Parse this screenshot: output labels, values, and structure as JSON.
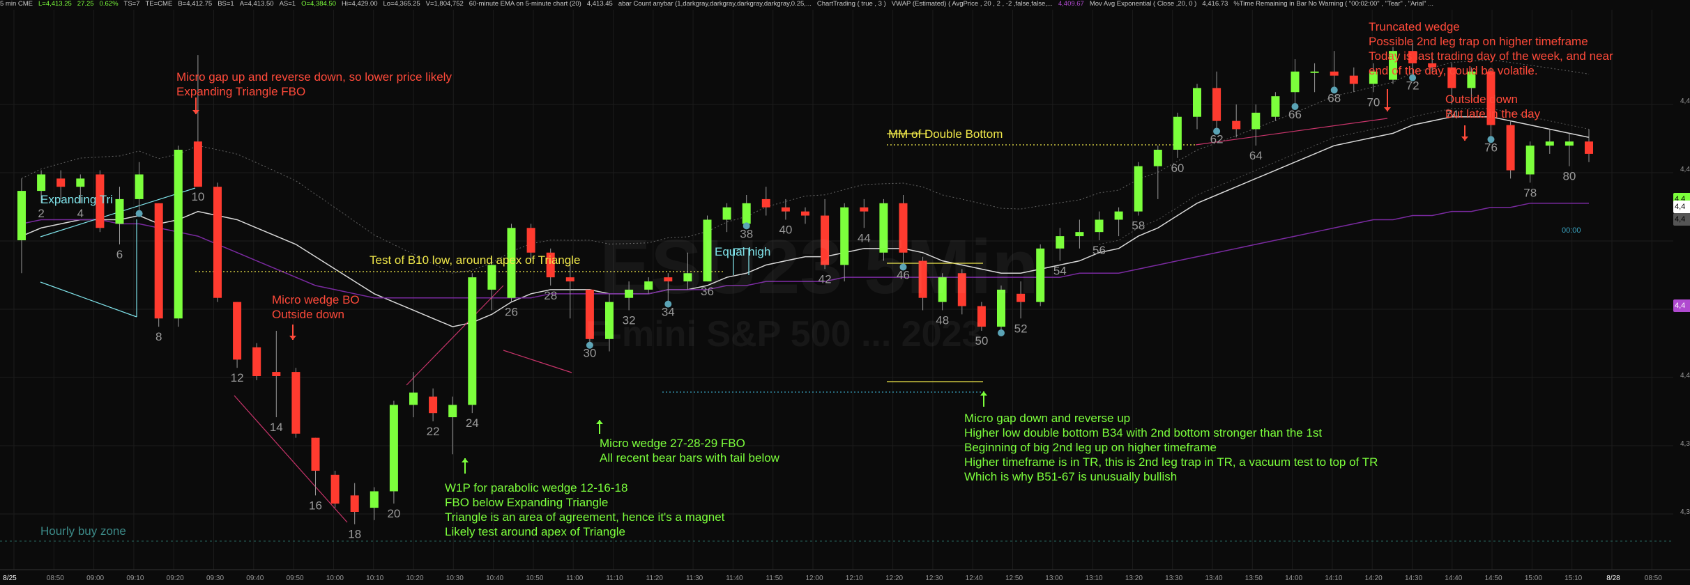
{
  "header": {
    "items": [
      "5 min CME",
      "L=4,413.25",
      "27.25",
      "0.62%",
      "TS=7",
      "TE=CME",
      "B=4,412.75",
      "BS=1",
      "A=4,413.50",
      "AS=1",
      "O=4,384.50",
      "Hi=4,429.00",
      "Lo=4,365.25",
      "V=1,804,752",
      "60-minute EMA on 5-minute chart (20)",
      "4,413.45",
      "abar Count anybar (1,darkgray,darkgray,darkgray,darkgray,0.25,...",
      "ChartTrading ( true , 3 )",
      "VWAP (Estimated) ( AvgPrice , 20 , 2 , -2 ,false,false,...",
      "4,409.67",
      "Mov Avg Exponential ( Close ,20, 0 )",
      "4,416.73",
      "%Time Remaining in Bar No Warning ( \"00:02:00\" , \"Tear\" , \"Arial\" ..."
    ]
  },
  "watermark": {
    "symbol": "ESU23 5Min",
    "desc": "E-mini S&P 500 ... 2023"
  },
  "annotations": {
    "micro_gap": "Micro gap up and reverse down, so lower price likely\nExpanding Triangle FBO",
    "expanding_tri": "Expanding Tri",
    "micro_wedge_bo": "Micro wedge BO\nOutside down",
    "test_b10": "Test of B10 low, around apex of Triangle",
    "equal_high": "Equal high",
    "mm_double_bottom": "MM of Double Bottom",
    "truncated_wedge": "Truncated wedge\nPossible 2nd leg trap on higher timeframe\nToday is last trading day of the week, and near\nend of the day, could be volatile.",
    "outside_down": "Outside down\nBut late in the day",
    "hourly_buy_zone": "Hourly buy zone",
    "w1p": "W1P for parabolic wedge 12-16-18\nFBO below Expanding Triangle\nTriangle is an area of agreement, hence it's a magnet\nLikely test around apex of Triangle",
    "micro_wedge_fbo": "Micro wedge 27-28-29 FBO\nAll recent bear bars with tail below",
    "micro_gap_down": "Micro gap down and reverse up\nHigher low double bottom B34 with 2nd bottom stronger than the 1st\nBeginning of big 2nd leg up on higher timeframe\nHigher timeframe is in TR, this is 2nd leg trap in TR, a vacuum test to top of TR\nWhich is why B51-67 is unusually bullish"
  },
  "timer": "00:00",
  "x_axis": [
    "8/25",
    "08:50",
    "09:00",
    "09:10",
    "09:20",
    "09:30",
    "09:40",
    "09:50",
    "10:00",
    "10:10",
    "10:20",
    "10:30",
    "10:40",
    "10:50",
    "11:00",
    "11:10",
    "11:20",
    "11:30",
    "11:40",
    "11:50",
    "12:00",
    "12:10",
    "12:20",
    "12:30",
    "12:40",
    "12:50",
    "13:00",
    "13:10",
    "13:20",
    "13:30",
    "13:40",
    "13:50",
    "14:00",
    "14:10",
    "14:20",
    "14:30",
    "14:40",
    "14:50",
    "15:00",
    "15:10",
    "8/28",
    "08:50"
  ],
  "right_ticks": [
    "4,4",
    "4,4",
    "4,4",
    "4,4",
    "4,3",
    "4,3",
    "4,3"
  ],
  "price_tags": [
    {
      "label": "4,4",
      "color": "#7cff3c"
    },
    {
      "label": "4,4",
      "color": "#ffffff"
    },
    {
      "label": "4,4",
      "color": "#555555"
    },
    {
      "label": "4,4",
      "color": "#b04ad0"
    }
  ],
  "colors": {
    "bull": "#7cff3c",
    "bear": "#ff3b2f",
    "ema": "#d9d9d9",
    "vwap": "#7a2aa0",
    "bg": "#0b0b0b"
  },
  "chart_data": {
    "type": "candlestick",
    "title": "ESU23 5Min",
    "candles": [
      {
        "n": 1,
        "o": 4395,
        "h": 4410,
        "l": 4387,
        "c": 4407
      },
      {
        "n": 2,
        "o": 4407,
        "h": 4412,
        "l": 4404,
        "c": 4411
      },
      {
        "n": 3,
        "o": 4410,
        "h": 4412,
        "l": 4405,
        "c": 4408
      },
      {
        "n": 4,
        "o": 4408,
        "h": 4411,
        "l": 4404,
        "c": 4410
      },
      {
        "n": 5,
        "o": 4411,
        "h": 4412,
        "l": 4397,
        "c": 4398
      },
      {
        "n": 6,
        "o": 4399,
        "h": 4408,
        "l": 4394,
        "c": 4405
      },
      {
        "n": 7,
        "o": 4405,
        "h": 4414,
        "l": 4402,
        "c": 4411
      },
      {
        "n": 8,
        "o": 4404,
        "h": 4404,
        "l": 4374,
        "c": 4376
      },
      {
        "n": 9,
        "o": 4376,
        "h": 4418,
        "l": 4374,
        "c": 4417
      },
      {
        "n": 10,
        "o": 4419,
        "h": 4440,
        "l": 4408,
        "c": 4408
      },
      {
        "n": 11,
        "o": 4408,
        "h": 4409,
        "l": 4380,
        "c": 4381
      },
      {
        "n": 12,
        "o": 4380,
        "h": 4380,
        "l": 4364,
        "c": 4366
      },
      {
        "n": 13,
        "o": 4369,
        "h": 4370,
        "l": 4361,
        "c": 4362
      },
      {
        "n": 14,
        "o": 4363,
        "h": 4373,
        "l": 4352,
        "c": 4362
      },
      {
        "n": 15,
        "o": 4363,
        "h": 4364,
        "l": 4347,
        "c": 4348
      },
      {
        "n": 16,
        "o": 4347,
        "h": 4347,
        "l": 4333,
        "c": 4339
      },
      {
        "n": 17,
        "o": 4338,
        "h": 4339,
        "l": 4330,
        "c": 4331
      },
      {
        "n": 18,
        "o": 4333,
        "h": 4336,
        "l": 4326,
        "c": 4329
      },
      {
        "n": 19,
        "o": 4330,
        "h": 4335,
        "l": 4327,
        "c": 4334
      },
      {
        "n": 20,
        "o": 4334,
        "h": 4356,
        "l": 4331,
        "c": 4355
      },
      {
        "n": 21,
        "o": 4355,
        "h": 4363,
        "l": 4352,
        "c": 4358
      },
      {
        "n": 22,
        "o": 4357,
        "h": 4359,
        "l": 4351,
        "c": 4353
      },
      {
        "n": 23,
        "o": 4352,
        "h": 4357,
        "l": 4343,
        "c": 4355
      },
      {
        "n": 24,
        "o": 4355,
        "h": 4387,
        "l": 4353,
        "c": 4386
      },
      {
        "n": 25,
        "o": 4383,
        "h": 4391,
        "l": 4378,
        "c": 4389
      },
      {
        "n": 26,
        "o": 4381,
        "h": 4399,
        "l": 4380,
        "c": 4398
      },
      {
        "n": 27,
        "o": 4398,
        "h": 4399,
        "l": 4390,
        "c": 4392
      },
      {
        "n": 28,
        "o": 4392,
        "h": 4393,
        "l": 4384,
        "c": 4386
      },
      {
        "n": 29,
        "o": 4386,
        "h": 4390,
        "l": 4376,
        "c": 4385
      },
      {
        "n": 30,
        "o": 4383,
        "h": 4383,
        "l": 4370,
        "c": 4371
      },
      {
        "n": 31,
        "o": 4371,
        "h": 4382,
        "l": 4368,
        "c": 4380
      },
      {
        "n": 32,
        "o": 4381,
        "h": 4385,
        "l": 4378,
        "c": 4383
      },
      {
        "n": 33,
        "o": 4383,
        "h": 4386,
        "l": 4382,
        "c": 4385
      },
      {
        "n": 34,
        "o": 4386,
        "h": 4387,
        "l": 4380,
        "c": 4385
      },
      {
        "n": 35,
        "o": 4385,
        "h": 4392,
        "l": 4383,
        "c": 4387
      },
      {
        "n": 36,
        "o": 4385,
        "h": 4401,
        "l": 4385,
        "c": 4400
      },
      {
        "n": 37,
        "o": 4400,
        "h": 4404,
        "l": 4397,
        "c": 4403
      },
      {
        "n": 38,
        "o": 4399,
        "h": 4406,
        "l": 4399,
        "c": 4404
      },
      {
        "n": 39,
        "o": 4405,
        "h": 4408,
        "l": 4401,
        "c": 4403
      },
      {
        "n": 40,
        "o": 4403,
        "h": 4405,
        "l": 4400,
        "c": 4402
      },
      {
        "n": 41,
        "o": 4402,
        "h": 4403,
        "l": 4399,
        "c": 4401
      },
      {
        "n": 42,
        "o": 4401,
        "h": 4405,
        "l": 4388,
        "c": 4389
      },
      {
        "n": 43,
        "o": 4389,
        "h": 4404,
        "l": 4385,
        "c": 4403
      },
      {
        "n": 44,
        "o": 4403,
        "h": 4405,
        "l": 4398,
        "c": 4402
      },
      {
        "n": 45,
        "o": 4392,
        "h": 4405,
        "l": 4390,
        "c": 4404
      },
      {
        "n": 46,
        "o": 4404,
        "h": 4406,
        "l": 4389,
        "c": 4392
      },
      {
        "n": 47,
        "o": 4390,
        "h": 4391,
        "l": 4378,
        "c": 4381
      },
      {
        "n": 48,
        "o": 4380,
        "h": 4387,
        "l": 4378,
        "c": 4386
      },
      {
        "n": 49,
        "o": 4387,
        "h": 4388,
        "l": 4377,
        "c": 4379
      },
      {
        "n": 50,
        "o": 4379,
        "h": 4380,
        "l": 4373,
        "c": 4374
      },
      {
        "n": 51,
        "o": 4374,
        "h": 4384,
        "l": 4373,
        "c": 4383
      },
      {
        "n": 52,
        "o": 4382,
        "h": 4385,
        "l": 4376,
        "c": 4380
      },
      {
        "n": 53,
        "o": 4380,
        "h": 4394,
        "l": 4379,
        "c": 4393
      },
      {
        "n": 54,
        "o": 4393,
        "h": 4398,
        "l": 4390,
        "c": 4396
      },
      {
        "n": 55,
        "o": 4396,
        "h": 4400,
        "l": 4393,
        "c": 4397
      },
      {
        "n": 56,
        "o": 4397,
        "h": 4402,
        "l": 4395,
        "c": 4400
      },
      {
        "n": 57,
        "o": 4400,
        "h": 4403,
        "l": 4396,
        "c": 4402
      },
      {
        "n": 58,
        "o": 4402,
        "h": 4414,
        "l": 4401,
        "c": 4413
      },
      {
        "n": 59,
        "o": 4413,
        "h": 4418,
        "l": 4405,
        "c": 4417
      },
      {
        "n": 60,
        "o": 4417,
        "h": 4426,
        "l": 4415,
        "c": 4425
      },
      {
        "n": 61,
        "o": 4425,
        "h": 4433,
        "l": 4422,
        "c": 4432
      },
      {
        "n": 62,
        "o": 4432,
        "h": 4436,
        "l": 4422,
        "c": 4424
      },
      {
        "n": 63,
        "o": 4424,
        "h": 4428,
        "l": 4420,
        "c": 4422
      },
      {
        "n": 64,
        "o": 4422,
        "h": 4428,
        "l": 4418,
        "c": 4426
      },
      {
        "n": 65,
        "o": 4425,
        "h": 4431,
        "l": 4424,
        "c": 4430
      },
      {
        "n": 66,
        "o": 4431,
        "h": 4439,
        "l": 4428,
        "c": 4436
      },
      {
        "n": 67,
        "o": 4436,
        "h": 4438,
        "l": 4431,
        "c": 4436
      },
      {
        "n": 68,
        "o": 4436,
        "h": 4441,
        "l": 4432,
        "c": 4435
      },
      {
        "n": 69,
        "o": 4435,
        "h": 4437,
        "l": 4431,
        "c": 4433
      },
      {
        "n": 70,
        "o": 4433,
        "h": 4438,
        "l": 4431,
        "c": 4436
      },
      {
        "n": 71,
        "o": 4434,
        "h": 4442,
        "l": 4433,
        "c": 4441
      },
      {
        "n": 72,
        "o": 4441,
        "h": 4443,
        "l": 4435,
        "c": 4438
      },
      {
        "n": 73,
        "o": 4438,
        "h": 4440,
        "l": 4436,
        "c": 4437
      },
      {
        "n": 74,
        "o": 4437,
        "h": 4438,
        "l": 4428,
        "c": 4432
      },
      {
        "n": 75,
        "o": 4432,
        "h": 4437,
        "l": 4429,
        "c": 4436
      },
      {
        "n": 76,
        "o": 4436,
        "h": 4437,
        "l": 4420,
        "c": 4423
      },
      {
        "n": 77,
        "o": 4423,
        "h": 4424,
        "l": 4410,
        "c": 4412
      },
      {
        "n": 78,
        "o": 4411,
        "h": 4419,
        "l": 4409,
        "c": 4418
      },
      {
        "n": 79,
        "o": 4418,
        "h": 4422,
        "l": 4416,
        "c": 4419
      },
      {
        "n": 80,
        "o": 4418,
        "h": 4421,
        "l": 4413,
        "c": 4419
      },
      {
        "n": 81,
        "o": 4419,
        "h": 4422,
        "l": 4414,
        "c": 4416
      }
    ],
    "bar_labels": [
      2,
      4,
      6,
      8,
      10,
      12,
      14,
      16,
      18,
      20,
      22,
      24,
      26,
      28,
      30,
      32,
      34,
      36,
      38,
      40,
      42,
      44,
      46,
      48,
      50,
      52,
      54,
      56,
      58,
      60,
      62,
      64,
      66,
      68,
      70,
      72,
      74,
      76,
      78,
      80
    ],
    "ema": [
      4396,
      4398,
      4399,
      4400,
      4400,
      4400,
      4401,
      4399,
      4400,
      4402,
      4401,
      4400,
      4398,
      4396,
      4394,
      4391,
      4388,
      4385,
      4382,
      4380,
      4378,
      4376,
      4374,
      4375,
      4377,
      4380,
      4382,
      4383,
      4383,
      4383,
      4382,
      4382,
      4382,
      4383,
      4383,
      4384,
      4386,
      4387,
      4389,
      4390,
      4391,
      4391,
      4392,
      4393,
      4393,
      4393,
      4392,
      4390,
      4389,
      4388,
      4387,
      4387,
      4388,
      4389,
      4390,
      4392,
      4393,
      4396,
      4398,
      4401,
      4404,
      4406,
      4408,
      4410,
      4412,
      4414,
      4416,
      4418,
      4419,
      4420,
      4421,
      4423,
      4424,
      4425,
      4425,
      4425,
      4424,
      4423,
      4422,
      4421,
      4420
    ],
    "vwap": [
      4399,
      4400,
      4400,
      4400,
      4400,
      4399,
      4399,
      4398,
      4397,
      4396,
      4394,
      4392,
      4390,
      4388,
      4386,
      4384,
      4383,
      4382,
      4381,
      4381,
      4381,
      4381,
      4381,
      4381,
      4381,
      4381,
      4381,
      4382,
      4382,
      4382,
      4382,
      4382,
      4382,
      4383,
      4383,
      4383,
      4384,
      4384,
      4385,
      4385,
      4385,
      4385,
      4386,
      4386,
      4386,
      4386,
      4386,
      4386,
      4386,
      4386,
      4386,
      4386,
      4386,
      4386,
      4387,
      4387,
      4387,
      4388,
      4389,
      4390,
      4391,
      4392,
      4393,
      4394,
      4395,
      4396,
      4397,
      4398,
      4399,
      4400,
      4400,
      4401,
      4401,
      4402,
      4402,
      4403,
      4403,
      4404,
      4404,
      4404,
      4404
    ],
    "y_range": [
      4318,
      4450
    ]
  }
}
